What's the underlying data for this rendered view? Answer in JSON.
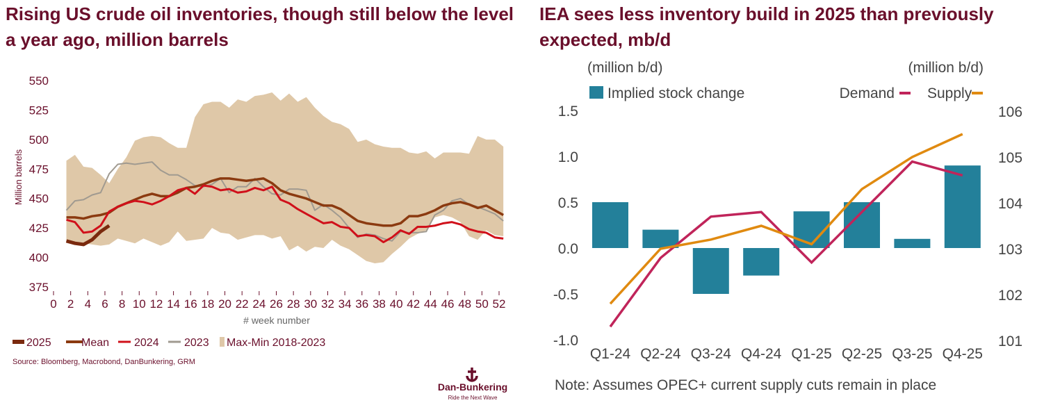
{
  "colors": {
    "title": "#6a0f2b",
    "c2025": "#7a2a0e",
    "mean": "#8b3a10",
    "c2024": "#d0101a",
    "c2023": "#a09a90",
    "band": "#dfc8a8",
    "bar": "#23809a",
    "demand": "#c0245a",
    "supply": "#e08a10"
  },
  "chart_data": [
    {
      "type": "line",
      "title": "Rising US crude oil inventories, though still below the level a year ago, million barrels",
      "xlabel": "# week number",
      "ylabel": "Million barrels",
      "xlim": [
        0,
        52
      ],
      "ylim": [
        375,
        550
      ],
      "xticks": [
        "0",
        "2",
        "4",
        "6",
        "8",
        "10",
        "12",
        "14",
        "16",
        "18",
        "20",
        "22",
        "24",
        "26",
        "28",
        "30",
        "32",
        "34",
        "36",
        "38",
        "40",
        "42",
        "44",
        "46",
        "48",
        "50",
        "52"
      ],
      "yticks": [
        "375",
        "400",
        "425",
        "450",
        "475",
        "500",
        "525",
        "550"
      ],
      "grid": false,
      "legend_placement": "bottom",
      "legend": [
        "2025",
        "Mean",
        "2024",
        "2023",
        "Max-Min 2018-2023"
      ],
      "source": "Source: Bloomberg, Macrobond, DanBunkering, GRM",
      "logo": {
        "name": "Dan-Bunkering",
        "tagline": "Ride the Next Wave"
      },
      "band": {
        "name": "Max-Min 2018-2023",
        "max": [
          482,
          487,
          477,
          476,
          470,
          463,
          475,
          485,
          499,
          502,
          503,
          502,
          497,
          493,
          493,
          519,
          530,
          532,
          532,
          527,
          534,
          532,
          537,
          538,
          540,
          533,
          539,
          532,
          536,
          527,
          520,
          515,
          513,
          509,
          498,
          500,
          496,
          494,
          493,
          493,
          489,
          488,
          490,
          484,
          489,
          489,
          489,
          488,
          503,
          500,
          500,
          494
        ],
        "min": [
          413,
          413,
          412,
          411,
          410,
          411,
          416,
          414,
          412,
          416,
          413,
          410,
          413,
          422,
          414,
          415,
          416,
          425,
          421,
          420,
          415,
          417,
          419,
          419,
          416,
          418,
          406,
          410,
          405,
          409,
          408,
          415,
          410,
          407,
          402,
          397,
          395,
          396,
          403,
          409,
          416,
          420,
          423,
          434,
          436,
          434,
          430,
          418,
          415,
          423,
          419,
          418
        ]
      },
      "series": [
        {
          "name": "2023",
          "values": [
            440,
            448,
            449,
            453,
            455,
            471,
            479,
            480,
            479,
            480,
            481,
            474,
            470,
            470,
            466,
            461,
            460,
            462,
            467,
            455,
            460,
            460,
            467,
            460,
            454,
            453,
            458,
            458,
            457,
            440,
            445,
            440,
            434,
            425,
            417,
            420,
            419,
            416,
            414,
            422,
            421,
            421,
            422,
            436,
            440,
            448,
            450,
            445,
            443,
            440,
            437,
            431
          ]
        },
        {
          "name": "Mean",
          "values": [
            434,
            434,
            433,
            435,
            436,
            438,
            443,
            446,
            449,
            452,
            454,
            452,
            452,
            455,
            459,
            460,
            462,
            465,
            467,
            467,
            466,
            465,
            466,
            467,
            463,
            457,
            454,
            452,
            450,
            447,
            444,
            444,
            441,
            436,
            431,
            429,
            428,
            427,
            427,
            429,
            435,
            435,
            437,
            440,
            444,
            446,
            447,
            445,
            442,
            444,
            440,
            436
          ]
        },
        {
          "name": "2024",
          "values": [
            432,
            430,
            421,
            422,
            427,
            439,
            443,
            446,
            448,
            447,
            445,
            448,
            452,
            457,
            459,
            454,
            461,
            460,
            457,
            458,
            455,
            456,
            459,
            457,
            460,
            449,
            446,
            441,
            437,
            433,
            429,
            430,
            426,
            425,
            418,
            419,
            418,
            413,
            417,
            423,
            420,
            426,
            426,
            427,
            429,
            430,
            428,
            424,
            422,
            421,
            417,
            416
          ]
        },
        {
          "name": "2025",
          "values": [
            414,
            412,
            411,
            415,
            422,
            427
          ]
        }
      ]
    },
    {
      "type": "bar",
      "title": "IEA sees less inventory build in 2025 than previously expected, mb/d",
      "ylabel_left": "(million b/d)",
      "ylabel_right": "(million b/d)",
      "categories": [
        "Q1-24",
        "Q2-24",
        "Q3-24",
        "Q4-24",
        "Q1-25",
        "Q2-25",
        "Q3-25",
        "Q4-25"
      ],
      "ylim_left": [
        -1.0,
        1.5
      ],
      "ylim_right": [
        101,
        106
      ],
      "yticks_left": [
        "-1.0",
        "-0.5",
        "0.0",
        "0.5",
        "1.0",
        "1.5"
      ],
      "yticks_right": [
        "101",
        "102",
        "103",
        "104",
        "105",
        "106"
      ],
      "grid": false,
      "legend_placement": "top",
      "note": "Note: Assumes OPEC+ current supply cuts remain in place",
      "series": [
        {
          "name": "Implied stock change",
          "type": "bar",
          "axis": "left",
          "values": [
            0.5,
            0.2,
            -0.5,
            -0.3,
            0.4,
            0.5,
            0.1,
            0.9
          ]
        },
        {
          "name": "Demand",
          "type": "line",
          "axis": "right",
          "values": [
            101.3,
            102.8,
            103.7,
            103.8,
            102.7,
            103.8,
            104.9,
            104.6
          ]
        },
        {
          "name": "Supply",
          "type": "line",
          "axis": "right",
          "values": [
            101.8,
            103.0,
            103.2,
            103.5,
            103.1,
            104.3,
            105.0,
            105.5
          ]
        }
      ]
    }
  ]
}
